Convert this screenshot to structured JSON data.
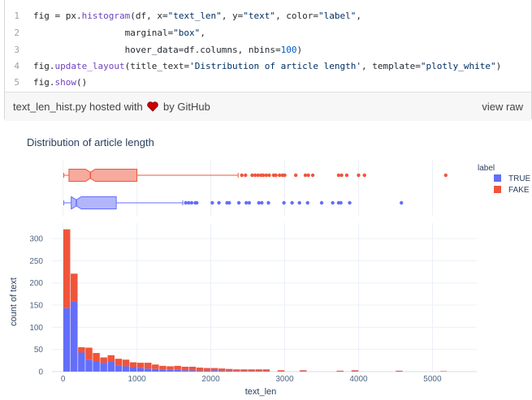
{
  "gist": {
    "lines": [
      {
        "num": "1",
        "tokens": [
          {
            "t": "fig = px.",
            "c": "kw"
          },
          {
            "t": "histogram",
            "c": "func"
          },
          {
            "t": "(df, x=",
            "c": "kw"
          },
          {
            "t": "\"text_len\"",
            "c": "str"
          },
          {
            "t": ", y=",
            "c": "kw"
          },
          {
            "t": "\"text\"",
            "c": "str"
          },
          {
            "t": ", color=",
            "c": "kw"
          },
          {
            "t": "\"label\"",
            "c": "str"
          },
          {
            "t": ",",
            "c": "kw"
          }
        ]
      },
      {
        "num": "2",
        "tokens": [
          {
            "t": "                 marginal=",
            "c": "kw"
          },
          {
            "t": "\"box\"",
            "c": "str"
          },
          {
            "t": ",",
            "c": "kw"
          }
        ]
      },
      {
        "num": "3",
        "tokens": [
          {
            "t": "                 hover_data=df.columns, nbins=",
            "c": "kw"
          },
          {
            "t": "100",
            "c": "num"
          },
          {
            "t": ")",
            "c": "kw"
          }
        ]
      },
      {
        "num": "4",
        "tokens": [
          {
            "t": "fig.",
            "c": "kw"
          },
          {
            "t": "update_layout",
            "c": "func"
          },
          {
            "t": "(title_text=",
            "c": "kw"
          },
          {
            "t": "'Distribution of article length'",
            "c": "str"
          },
          {
            "t": ", template=",
            "c": "kw"
          },
          {
            "t": "\"plotly_white\"",
            "c": "str"
          },
          {
            "t": ")",
            "c": "kw"
          }
        ]
      },
      {
        "num": "5",
        "tokens": [
          {
            "t": "fig.",
            "c": "kw"
          },
          {
            "t": "show",
            "c": "func"
          },
          {
            "t": "()",
            "c": "kw"
          }
        ]
      }
    ],
    "filename": "text_len_hist.py",
    "hosted_with": "hosted with",
    "by": "by",
    "github": "GitHub",
    "view_raw": "view raw",
    "heart_color": "#cc0000"
  },
  "chart_data": {
    "type": "bar",
    "title": "Distribution of article length",
    "xlabel": "text_len",
    "ylabel": "count of text",
    "xlim": [
      -150,
      5600
    ],
    "ylim": [
      0,
      335
    ],
    "xticks": [
      0,
      1000,
      2000,
      3000,
      4000,
      5000
    ],
    "xtick_labels": [
      "0",
      "1000",
      "2000",
      "3000",
      "4000",
      "5000"
    ],
    "yticks": [
      0,
      50,
      100,
      150,
      200,
      250,
      300
    ],
    "legend": {
      "title": "label",
      "placement": "top-right"
    },
    "barmode": "stack",
    "bin_width": 100,
    "bin_starts": [
      0,
      100,
      200,
      300,
      400,
      500,
      600,
      700,
      800,
      900,
      1000,
      1100,
      1200,
      1300,
      1400,
      1500,
      1600,
      1700,
      1800,
      1900,
      2000,
      2100,
      2200,
      2300,
      2400,
      2500,
      2600,
      2700,
      2900,
      3200,
      3700,
      3900,
      4500,
      5100
    ],
    "series": [
      {
        "name": "TRUE",
        "color": "#636efa",
        "values": [
          143,
          159,
          43,
          27,
          22,
          20,
          22,
          14,
          12,
          10,
          8,
          7,
          6,
          5,
          4,
          4,
          3,
          3,
          2,
          2,
          3,
          2,
          2,
          1,
          1,
          1,
          1,
          1,
          0,
          1,
          0,
          1,
          1,
          0
        ],
        "box": {
          "min": 10,
          "q1": 110,
          "median": 180,
          "q3": 720,
          "max": 1620,
          "outliers": [
            1660,
            1700,
            1740,
            1790,
            1810,
            2020,
            2110,
            2220,
            2250,
            2380,
            2480,
            2520,
            2650,
            2690,
            2780,
            2990,
            3100,
            3200,
            3310,
            3500,
            3650,
            3730,
            3760,
            3880,
            4580
          ]
        }
      },
      {
        "name": "FAKE",
        "color": "#ef553b",
        "values": [
          178,
          62,
          12,
          27,
          20,
          12,
          15,
          15,
          15,
          11,
          12,
          13,
          10,
          8,
          8,
          9,
          8,
          8,
          7,
          6,
          5,
          5,
          4,
          4,
          4,
          4,
          4,
          4,
          3,
          2,
          2,
          2,
          1,
          1
        ],
        "box": {
          "min": 10,
          "q1": 80,
          "median": 370,
          "q3": 1000,
          "max": 2370,
          "outliers": [
            2420,
            2470,
            2560,
            2600,
            2640,
            2680,
            2710,
            2750,
            2790,
            2850,
            2880,
            2930,
            2970,
            3000,
            3150,
            3280,
            3320,
            3380,
            3730,
            3770,
            3840,
            4000,
            4080,
            5180
          ]
        }
      }
    ]
  }
}
